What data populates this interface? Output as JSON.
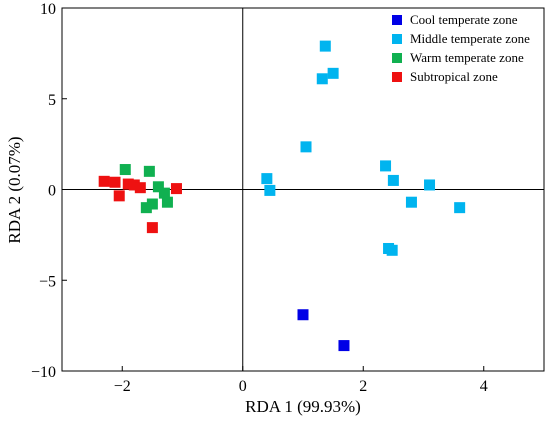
{
  "chart_data": {
    "type": "scatter",
    "xlabel": "RDA 1 (99.93%)",
    "ylabel": "RDA 2 (0.07%)",
    "xlim": [
      -3,
      5
    ],
    "ylim": [
      -10,
      10
    ],
    "x_ticks": [
      -2,
      0,
      2,
      4
    ],
    "y_ticks": [
      -10,
      -5,
      0,
      5,
      10
    ],
    "x_tick_labels": [
      "−2",
      "0",
      "2",
      "4"
    ],
    "y_tick_labels": [
      "−10",
      "−5",
      "0",
      "5",
      "10"
    ],
    "grid": false,
    "zero_lines": true,
    "legend_position": "top-right",
    "marker": "square",
    "series": [
      {
        "name": "Cool temperate zone",
        "color": "#0000e6",
        "points": [
          [
            1.0,
            -6.9
          ],
          [
            1.68,
            -8.6
          ]
        ]
      },
      {
        "name": "Middle temperate zone",
        "color": "#00b4ef",
        "points": [
          [
            1.37,
            7.9
          ],
          [
            1.32,
            6.1
          ],
          [
            1.5,
            6.4
          ],
          [
            1.05,
            2.35
          ],
          [
            0.4,
            0.6
          ],
          [
            0.45,
            -0.05
          ],
          [
            2.37,
            1.3
          ],
          [
            2.5,
            0.5
          ],
          [
            3.1,
            0.25
          ],
          [
            3.6,
            -1.0
          ],
          [
            2.8,
            -0.7
          ],
          [
            2.42,
            -3.25
          ],
          [
            2.48,
            -3.35
          ]
        ]
      },
      {
        "name": "Warm temperate zone",
        "color": "#10b050",
        "points": [
          [
            -1.95,
            1.1
          ],
          [
            -1.55,
            1.0
          ],
          [
            -1.4,
            0.15
          ],
          [
            -1.6,
            -1.0
          ],
          [
            -1.5,
            -0.8
          ],
          [
            -1.3,
            -0.2
          ],
          [
            -1.25,
            -0.7
          ]
        ]
      },
      {
        "name": "Subtropical zone",
        "color": "#ee1111",
        "points": [
          [
            -2.3,
            0.45
          ],
          [
            -2.12,
            0.4
          ],
          [
            -2.05,
            -0.35
          ],
          [
            -1.9,
            0.3
          ],
          [
            -1.8,
            0.25
          ],
          [
            -1.7,
            0.1
          ],
          [
            -1.1,
            0.05
          ],
          [
            -1.5,
            -2.1
          ]
        ]
      }
    ]
  }
}
